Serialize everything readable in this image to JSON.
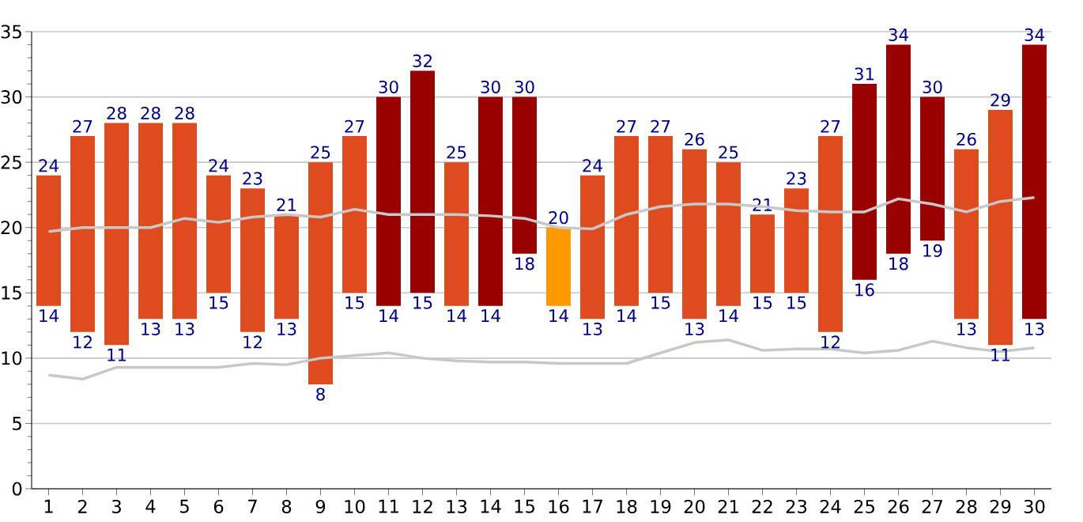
{
  "chart_data": {
    "type": "bar",
    "categories": [
      "1",
      "2",
      "3",
      "4",
      "5",
      "6",
      "7",
      "8",
      "9",
      "10",
      "11",
      "12",
      "13",
      "14",
      "15",
      "16",
      "17",
      "18",
      "19",
      "20",
      "21",
      "22",
      "23",
      "24",
      "25",
      "26",
      "27",
      "28",
      "29",
      "30"
    ],
    "series": [
      {
        "base": [
          14,
          12,
          11,
          13,
          13,
          15,
          12,
          13,
          8,
          15,
          14,
          15,
          14,
          14,
          18,
          14,
          13,
          14,
          15,
          13,
          14,
          15,
          15,
          12,
          16,
          18,
          19,
          13,
          11,
          13
        ],
        "values": [
          10,
          15,
          17,
          15,
          15,
          9,
          11,
          8,
          17,
          12,
          16,
          17,
          11,
          16,
          12,
          6,
          11,
          13,
          12,
          13,
          11,
          6,
          8,
          15,
          15,
          16,
          11,
          13,
          18,
          21
        ],
        "colors": [
          "#dd4b1f",
          "#dd4b1f",
          "#dd4b1f",
          "#dd4b1f",
          "#dd4b1f",
          "#dd4b1f",
          "#dd4b1f",
          "#dd4b1f",
          "#dd4b1f",
          "#dd4b1f",
          "#990000",
          "#990000",
          "#dd4b1f",
          "#990000",
          "#990000",
          "#ff9900",
          "#dd4b1f",
          "#dd4b1f",
          "#dd4b1f",
          "#dd4b1f",
          "#dd4b1f",
          "#dd4b1f",
          "#dd4b1f",
          "#dd4b1f",
          "#990000",
          "#990000",
          "#990000",
          "#dd4b1f",
          "#dd4b1f",
          "#990000"
        ],
        "value_labels": [
          "24",
          "27",
          "28",
          "28",
          "28",
          "24",
          "23",
          "21",
          "25",
          "27",
          "30",
          "32",
          "25",
          "30",
          "30",
          "20",
          "24",
          "27",
          "27",
          "26",
          "25",
          "21",
          "23",
          "27",
          "31",
          "34",
          "30",
          "26",
          "29",
          "34"
        ]
      },
      {
        "type": "line",
        "color": "#c8c8c8",
        "values": [
          19.7,
          20.0,
          20.0,
          20.0,
          20.7,
          20.4,
          20.8,
          21.0,
          20.8,
          21.4,
          21.0,
          21.0,
          21.0,
          20.9,
          20.7,
          20.0,
          19.9,
          21.0,
          21.6,
          21.8,
          21.8,
          21.6,
          21.3,
          21.2,
          21.2,
          22.2,
          21.8,
          21.2,
          22.0,
          22.3
        ]
      },
      {
        "type": "line",
        "color": "#c8c8c8",
        "values": [
          8.7,
          8.4,
          9.3,
          9.3,
          9.3,
          9.3,
          9.6,
          9.5,
          10.0,
          10.2,
          10.4,
          10.0,
          9.8,
          9.7,
          9.7,
          9.6,
          9.6,
          9.6,
          10.4,
          11.2,
          11.4,
          10.6,
          10.7,
          10.7,
          10.4,
          10.6,
          11.3,
          10.8,
          10.5,
          10.8
        ]
      }
    ],
    "annotations": [
      {
        "text": "14",
        "x": "1",
        "y": 14
      },
      {
        "text": "12",
        "x": "2",
        "y": 12
      },
      {
        "text": "11",
        "x": "3",
        "y": 11
      },
      {
        "text": "13",
        "x": "4",
        "y": 13
      },
      {
        "text": "13",
        "x": "5",
        "y": 13
      },
      {
        "text": "15",
        "x": "6",
        "y": 15
      },
      {
        "text": "12",
        "x": "7",
        "y": 12
      },
      {
        "text": "13",
        "x": "8",
        "y": 13
      },
      {
        "text": "8",
        "x": "9",
        "y": 8
      },
      {
        "text": "15",
        "x": "10",
        "y": 15
      },
      {
        "text": "14",
        "x": "11",
        "y": 14
      },
      {
        "text": "15",
        "x": "12",
        "y": 15
      },
      {
        "text": "14",
        "x": "13",
        "y": 14
      },
      {
        "text": "14",
        "x": "14",
        "y": 14
      },
      {
        "text": "18",
        "x": "15",
        "y": 18
      },
      {
        "text": "14",
        "x": "16",
        "y": 14
      },
      {
        "text": "13",
        "x": "17",
        "y": 13
      },
      {
        "text": "14",
        "x": "18",
        "y": 14
      },
      {
        "text": "15",
        "x": "19",
        "y": 15
      },
      {
        "text": "13",
        "x": "20",
        "y": 13
      },
      {
        "text": "14",
        "x": "21",
        "y": 14
      },
      {
        "text": "15",
        "x": "22",
        "y": 15
      },
      {
        "text": "15",
        "x": "23",
        "y": 15
      },
      {
        "text": "12",
        "x": "24",
        "y": 12
      },
      {
        "text": "16",
        "x": "25",
        "y": 16
      },
      {
        "text": "18",
        "x": "26",
        "y": 18
      },
      {
        "text": "19",
        "x": "27",
        "y": 19
      },
      {
        "text": "13",
        "x": "28",
        "y": 13
      },
      {
        "text": "11",
        "x": "29",
        "y": 11
      },
      {
        "text": "13",
        "x": "30",
        "y": 13
      }
    ],
    "ylim": [
      0,
      35
    ],
    "yticks": [
      0,
      5,
      10,
      15,
      20,
      25,
      30,
      35
    ],
    "grid": "y",
    "legend": false
  }
}
